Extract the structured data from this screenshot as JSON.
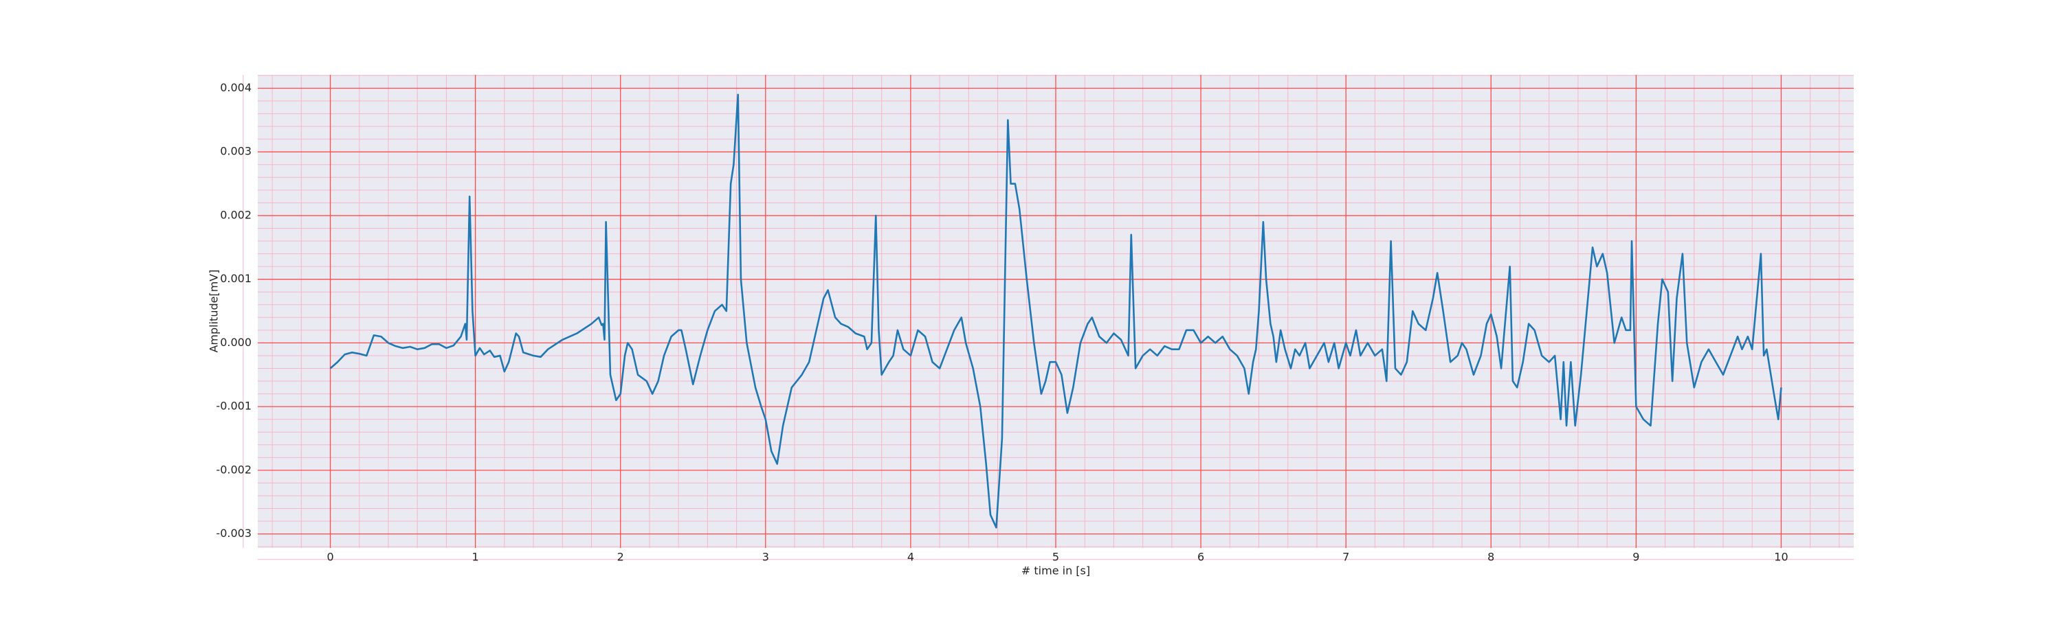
{
  "chart_data": {
    "type": "line",
    "xlabel": "# time in [s]",
    "ylabel": "Amplitude[mV]",
    "color": "#1f77b4",
    "grid": true,
    "grid_color": "#ff4d4d",
    "minor_grid": 5,
    "minor_grid_color": "#f7b6c8",
    "xlim": [
      -0.5,
      10.5
    ],
    "ylim": [
      -0.00322,
      0.00421
    ],
    "xticks": [
      0,
      1,
      2,
      3,
      4,
      5,
      6,
      7,
      8,
      9,
      10
    ],
    "yticks": [
      -0.003,
      -0.002,
      -0.001,
      {
        "value": 0,
        "label": "0.000"
      },
      0.001,
      0.002,
      0.003,
      0.004
    ],
    "x": [
      0,
      0.05,
      0.1,
      0.15,
      0.2,
      0.25,
      0.3,
      0.35,
      0.4,
      0.45,
      0.5,
      0.55,
      0.6,
      0.65,
      0.7,
      0.75,
      0.8,
      0.85,
      0.9,
      0.93,
      0.94,
      0.96,
      0.98,
      1.0,
      1.03,
      1.06,
      1.1,
      1.13,
      1.17,
      1.2,
      1.23,
      1.28,
      1.3,
      1.33,
      1.4,
      1.45,
      1.5,
      1.6,
      1.7,
      1.8,
      1.85,
      1.87,
      1.88,
      1.89,
      1.9,
      1.92,
      1.93,
      1.97,
      2.0,
      2.03,
      2.05,
      2.08,
      2.12,
      2.18,
      2.22,
      2.26,
      2.3,
      2.35,
      2.4,
      2.42,
      2.45,
      2.5,
      2.55,
      2.6,
      2.65,
      2.7,
      2.73,
      2.76,
      2.78,
      2.81,
      2.83,
      2.87,
      2.93,
      2.97,
      3.0,
      3.04,
      3.08,
      3.12,
      3.18,
      3.25,
      3.3,
      3.35,
      3.4,
      3.43,
      3.48,
      3.52,
      3.57,
      3.62,
      3.68,
      3.7,
      3.73,
      3.76,
      3.78,
      3.8,
      3.85,
      3.88,
      3.91,
      3.95,
      4.0,
      4.05,
      4.1,
      4.15,
      4.2,
      4.25,
      4.3,
      4.35,
      4.38,
      4.43,
      4.48,
      4.52,
      4.55,
      4.59,
      4.63,
      4.65,
      4.67,
      4.69,
      4.72,
      4.75,
      4.8,
      4.85,
      4.9,
      4.93,
      4.96,
      5.0,
      5.04,
      5.08,
      5.12,
      5.17,
      5.22,
      5.25,
      5.3,
      5.35,
      5.4,
      5.45,
      5.5,
      5.52,
      5.55,
      5.6,
      5.65,
      5.7,
      5.75,
      5.8,
      5.85,
      5.9,
      5.95,
      6.0,
      6.05,
      6.1,
      6.15,
      6.2,
      6.25,
      6.3,
      6.33,
      6.36,
      6.38,
      6.4,
      6.43,
      6.45,
      6.48,
      6.5,
      6.52,
      6.55,
      6.58,
      6.62,
      6.65,
      6.68,
      6.72,
      6.75,
      6.8,
      6.85,
      6.88,
      6.92,
      6.95,
      7.0,
      7.03,
      7.07,
      7.1,
      7.15,
      7.2,
      7.25,
      7.28,
      7.31,
      7.34,
      7.38,
      7.42,
      7.46,
      7.5,
      7.55,
      7.6,
      7.63,
      7.67,
      7.72,
      7.77,
      7.8,
      7.83,
      7.88,
      7.93,
      7.97,
      8.0,
      8.04,
      8.07,
      8.13,
      8.15,
      8.18,
      8.22,
      8.26,
      8.3,
      8.35,
      8.4,
      8.44,
      8.48,
      8.5,
      8.52,
      8.55,
      8.58,
      8.62,
      8.66,
      8.7,
      8.73,
      8.77,
      8.8,
      8.85,
      8.9,
      8.93,
      8.96,
      8.97,
      9.0,
      9.05,
      9.1,
      9.15,
      9.18,
      9.22,
      9.25,
      9.28,
      9.32,
      9.35,
      9.4,
      9.45,
      9.5,
      9.55,
      9.6,
      9.65,
      9.7,
      9.73,
      9.77,
      9.8,
      9.86,
      9.88,
      9.9,
      9.95,
      9.98,
      10.0
    ],
    "values": [
      -0.0004,
      -0.0003,
      -0.00018,
      -0.00015,
      -0.00017,
      -0.0002,
      0.00012,
      0.0001,
      0.0,
      -5e-05,
      -8e-05,
      -6e-05,
      -0.0001,
      -8e-05,
      -2e-05,
      -2e-05,
      -8e-05,
      -4e-05,
      0.0001,
      0.0003,
      5e-05,
      0.0023,
      0.0005,
      -0.0002,
      -8e-05,
      -0.00018,
      -0.00012,
      -0.00022,
      -0.0002,
      -0.00045,
      -0.0003,
      0.00015,
      0.0001,
      -0.00015,
      -0.0002,
      -0.00022,
      -0.0001,
      5e-05,
      0.00015,
      0.0003,
      0.0004,
      0.00028,
      0.0003,
      5e-05,
      0.0019,
      0.0003,
      -0.0005,
      -0.0009,
      -0.0008,
      -0.0002,
      0.0,
      -0.0001,
      -0.0005,
      -0.0006,
      -0.0008,
      -0.0006,
      -0.0002,
      0.0001,
      0.0002,
      0.0002,
      -0.0001,
      -0.00065,
      -0.0002,
      0.0002,
      0.0005,
      0.0006,
      0.0005,
      0.0025,
      0.0028,
      0.0039,
      0.001,
      0.0,
      -0.0007,
      -0.001,
      -0.0012,
      -0.0017,
      -0.0019,
      -0.0013,
      -0.0007,
      -0.0005,
      -0.0003,
      0.0002,
      0.0007,
      0.00083,
      0.0004,
      0.0003,
      0.00025,
      0.00015,
      0.0001,
      -0.0001,
      0.0,
      0.002,
      0.0002,
      -0.0005,
      -0.0003,
      -0.0002,
      0.0002,
      -0.0001,
      -0.0002,
      0.0002,
      0.0001,
      -0.0003,
      -0.0004,
      -0.0001,
      0.0002,
      0.0004,
      0.0,
      -0.0004,
      -0.001,
      -0.0019,
      -0.0027,
      -0.0029,
      -0.0015,
      0.001,
      0.0035,
      0.0025,
      0.0025,
      0.0021,
      0.001,
      0.0,
      -0.0008,
      -0.0006,
      -0.0003,
      -0.0003,
      -0.0005,
      -0.0011,
      -0.0007,
      0.0,
      0.0003,
      0.0004,
      0.0001,
      0.0,
      0.00015,
      5e-05,
      -0.0002,
      0.0017,
      -0.0004,
      -0.0002,
      -0.0001,
      -0.0002,
      -5e-05,
      -0.0001,
      -0.0001,
      0.0002,
      0.0002,
      0.0,
      0.0001,
      0.0,
      0.0001,
      -0.0001,
      -0.0002,
      -0.0004,
      -0.0008,
      -0.0003,
      -0.0001,
      0.0005,
      0.0019,
      0.001,
      0.0003,
      0.0001,
      -0.0003,
      0.0002,
      -0.0001,
      -0.0004,
      -0.0001,
      -0.0002,
      0.0,
      -0.0004,
      -0.0002,
      0.0,
      -0.0003,
      0.0,
      -0.0004,
      0.0,
      -0.0002,
      0.0002,
      -0.0002,
      0.0,
      -0.0002,
      -0.0001,
      -0.0006,
      0.0016,
      -0.0004,
      -0.0005,
      -0.0003,
      0.0005,
      0.0003,
      0.0002,
      0.0007,
      0.0011,
      0.0005,
      -0.0003,
      -0.0002,
      0.0,
      -0.0001,
      -0.0005,
      -0.0002,
      0.0003,
      0.00045,
      0.0001,
      -0.0004,
      0.0012,
      -0.0006,
      -0.0007,
      -0.0003,
      0.0003,
      0.0002,
      -0.0002,
      -0.0003,
      -0.0002,
      -0.0012,
      -0.0003,
      -0.0013,
      -0.0003,
      -0.0013,
      -0.0005,
      0.0005,
      0.0015,
      0.0012,
      0.0014,
      0.0011,
      0.0,
      0.0004,
      0.0002,
      0.0002,
      0.0016,
      -0.001,
      -0.0012,
      -0.0013,
      0.0003,
      0.001,
      0.0008,
      -0.0006,
      0.0007,
      0.0014,
      0.0,
      -0.0007,
      -0.0003,
      -0.0001,
      -0.0003,
      -0.0005,
      -0.0002,
      0.0001,
      -0.0001,
      0.0001,
      -0.0001,
      0.0014,
      -0.0002,
      -0.0001,
      -0.0008,
      -0.0012,
      -0.0007
    ]
  }
}
